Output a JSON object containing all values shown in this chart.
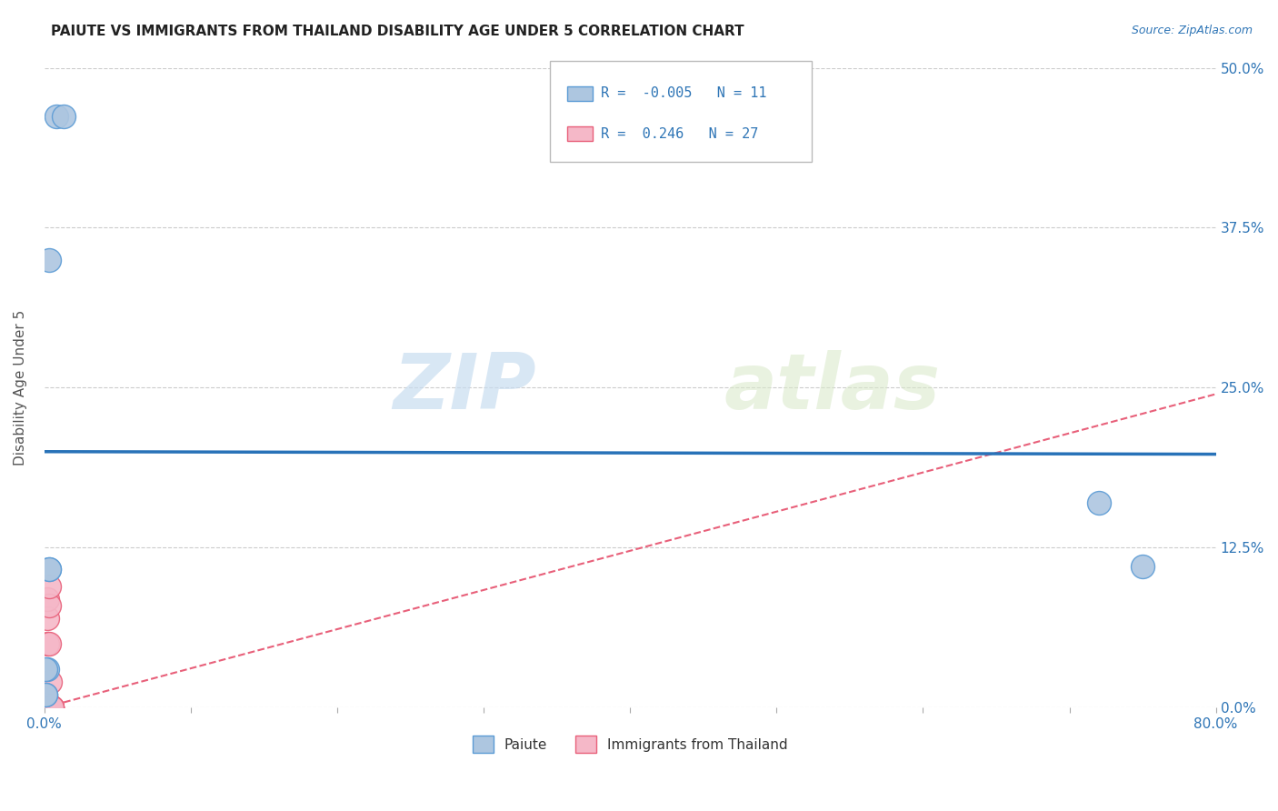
{
  "title": "PAIUTE VS IMMIGRANTS FROM THAILAND DISABILITY AGE UNDER 5 CORRELATION CHART",
  "source": "Source: ZipAtlas.com",
  "ylabel": "Disability Age Under 5",
  "xlim": [
    0,
    0.8
  ],
  "ylim": [
    0,
    0.5
  ],
  "xticks": [
    0.0,
    0.1,
    0.2,
    0.3,
    0.4,
    0.5,
    0.6,
    0.7,
    0.8
  ],
  "yticks": [
    0.0,
    0.125,
    0.25,
    0.375,
    0.5
  ],
  "ytick_labels": [
    "0.0%",
    "12.5%",
    "25.0%",
    "37.5%",
    "50.0%"
  ],
  "xtick_labels": [
    "0.0%",
    "",
    "",
    "",
    "",
    "",
    "",
    "",
    "80.0%"
  ],
  "paiute_x": [
    0.008,
    0.013,
    0.003,
    0.003,
    0.003,
    0.002,
    0.001,
    0.001,
    0.001,
    0.72,
    0.75
  ],
  "paiute_y": [
    0.462,
    0.462,
    0.35,
    0.108,
    0.108,
    0.03,
    0.03,
    0.01,
    0.01,
    0.16,
    0.11
  ],
  "thailand_x": [
    0.001,
    0.001,
    0.001,
    0.001,
    0.001,
    0.001,
    0.001,
    0.002,
    0.002,
    0.002,
    0.002,
    0.002,
    0.002,
    0.003,
    0.003,
    0.003,
    0.003,
    0.003,
    0.003,
    0.004,
    0.004,
    0.005,
    0.005,
    0.005,
    0.005,
    0.005,
    0.005
  ],
  "thailand_y": [
    0.0,
    0.0,
    0.0,
    0.0,
    0.0,
    0.005,
    0.01,
    0.0,
    0.0,
    0.0,
    0.05,
    0.07,
    0.085,
    0.0,
    0.0,
    0.0,
    0.05,
    0.08,
    0.095,
    0.0,
    0.02,
    0.0,
    0.0,
    0.0,
    0.0,
    0.0,
    0.0
  ],
  "paiute_color": "#adc6e0",
  "thailand_color": "#f5b8c8",
  "paiute_edge_color": "#5b9bd5",
  "thailand_edge_color": "#e8607a",
  "trend_paiute_color": "#2872b8",
  "trend_thailand_color": "#e8607a",
  "paiute_trend_y0": 0.2,
  "paiute_trend_y1": 0.198,
  "thailand_trend_y0": 0.0,
  "thailand_trend_y1": 0.245,
  "paiute_R": -0.005,
  "paiute_N": 11,
  "thailand_R": 0.246,
  "thailand_N": 27,
  "legend_paiute": "Paiute",
  "legend_thailand": "Immigrants from Thailand",
  "watermark_zip": "ZIP",
  "watermark_atlas": "atlas",
  "background_color": "#ffffff",
  "grid_color": "#cccccc"
}
